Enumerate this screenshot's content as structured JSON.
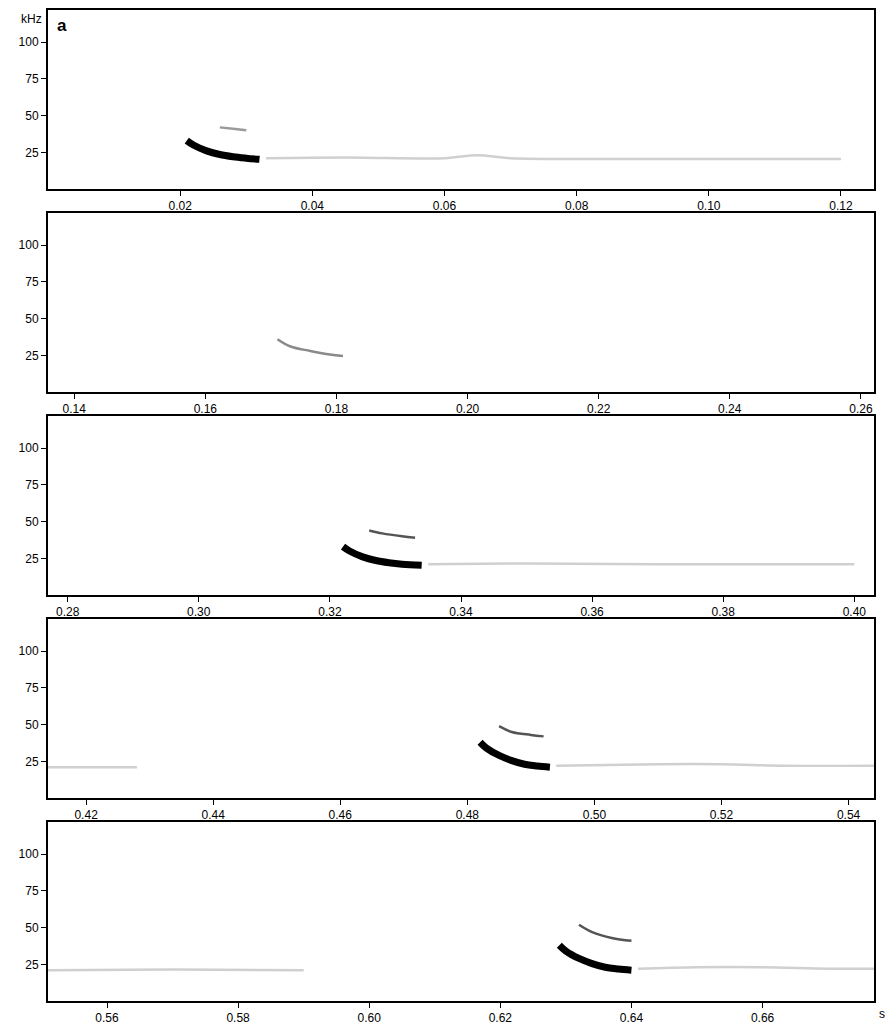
{
  "chart_data": [
    {
      "type": "line",
      "title": "a",
      "ylabel": "kHz",
      "xlim": [
        0.0,
        0.125
      ],
      "xticks": [
        0.02,
        0.04,
        0.06,
        0.08,
        0.1,
        0.12
      ],
      "ylim": [
        0,
        122
      ],
      "yticks": [
        25,
        50,
        75,
        100
      ],
      "grid": false,
      "series": [
        {
          "color": "#d0d0d0",
          "line_style": "solid",
          "x": [
            0.033,
            0.045,
            0.06,
            0.065,
            0.07,
            0.09,
            0.12
          ],
          "values": [
            21,
            21.5,
            21,
            23,
            21,
            20.5,
            20.5
          ]
        },
        {
          "color": "#9a9a9a",
          "line_style": "solid",
          "x": [
            0.026,
            0.028,
            0.03
          ],
          "values": [
            42,
            41,
            40
          ]
        },
        {
          "color": "#000000",
          "line_style": "bold",
          "x": [
            0.021,
            0.022,
            0.024,
            0.026,
            0.028,
            0.03,
            0.032
          ],
          "values": [
            33,
            30,
            26,
            23.5,
            22,
            21,
            20.2
          ]
        }
      ]
    },
    {
      "type": "line",
      "xlim": [
        0.136,
        0.262
      ],
      "xticks": [
        0.14,
        0.16,
        0.18,
        0.2,
        0.22,
        0.24,
        0.26
      ],
      "ylim": [
        0,
        122
      ],
      "yticks": [
        25,
        50,
        75,
        100
      ],
      "grid": false,
      "series": [
        {
          "color": "#8a8a8a",
          "line_style": "solid",
          "x": [
            0.171,
            0.173,
            0.176,
            0.179,
            0.181
          ],
          "values": [
            36,
            31,
            28,
            25.5,
            24.5
          ]
        }
      ]
    },
    {
      "type": "line",
      "xlim": [
        0.277,
        0.403
      ],
      "xticks": [
        0.28,
        0.3,
        0.32,
        0.34,
        0.36,
        0.38,
        0.4
      ],
      "ylim": [
        0,
        122
      ],
      "yticks": [
        25,
        50,
        75,
        100
      ],
      "grid": false,
      "series": [
        {
          "color": "#d0d0d0",
          "line_style": "solid",
          "x": [
            0.335,
            0.35,
            0.37,
            0.39,
            0.4
          ],
          "values": [
            21,
            21.5,
            21,
            21,
            21
          ]
        },
        {
          "color": "#555555",
          "line_style": "solid",
          "x": [
            0.326,
            0.328,
            0.331,
            0.333
          ],
          "values": [
            44,
            42,
            40,
            39
          ]
        },
        {
          "color": "#000000",
          "line_style": "bold",
          "x": [
            0.322,
            0.323,
            0.325,
            0.327,
            0.329,
            0.331,
            0.334
          ],
          "values": [
            33,
            30,
            26,
            23.5,
            22,
            21,
            20.2
          ]
        }
      ]
    },
    {
      "type": "line",
      "xlim": [
        0.414,
        0.544
      ],
      "xticks": [
        0.42,
        0.44,
        0.46,
        0.48,
        0.5,
        0.52,
        0.54
      ],
      "ylim": [
        0,
        122
      ],
      "yticks": [
        25,
        50,
        75,
        100
      ],
      "grid": false,
      "series": [
        {
          "color": "#d0d0d0",
          "line_style": "solid",
          "x": [
            0.414,
            0.42,
            0.428
          ],
          "values": [
            21,
            21,
            21
          ]
        },
        {
          "color": "#d0d0d0",
          "line_style": "solid",
          "x": [
            0.494,
            0.51,
            0.52,
            0.53,
            0.544
          ],
          "values": [
            22,
            23,
            23,
            22,
            22
          ]
        },
        {
          "color": "#555555",
          "line_style": "solid",
          "x": [
            0.485,
            0.487,
            0.49,
            0.492
          ],
          "values": [
            49,
            45,
            43,
            42
          ]
        },
        {
          "color": "#000000",
          "line_style": "bold",
          "x": [
            0.482,
            0.483,
            0.485,
            0.487,
            0.489,
            0.491,
            0.493
          ],
          "values": [
            38,
            34,
            29,
            25.5,
            23,
            21.8,
            21
          ]
        }
      ]
    },
    {
      "type": "line",
      "xlabel": "s",
      "xlim": [
        0.551,
        0.677
      ],
      "xticks": [
        0.56,
        0.58,
        0.6,
        0.62,
        0.64,
        0.66
      ],
      "ylim": [
        0,
        122
      ],
      "yticks": [
        25,
        50,
        75,
        100
      ],
      "grid": false,
      "series": [
        {
          "color": "#d0d0d0",
          "line_style": "solid",
          "x": [
            0.551,
            0.57,
            0.59
          ],
          "values": [
            21,
            21.5,
            21
          ]
        },
        {
          "color": "#d0d0d0",
          "line_style": "solid",
          "x": [
            0.641,
            0.65,
            0.66,
            0.67,
            0.677
          ],
          "values": [
            22,
            23,
            23,
            22,
            22
          ]
        },
        {
          "color": "#555555",
          "line_style": "solid",
          "x": [
            0.632,
            0.634,
            0.637,
            0.64
          ],
          "values": [
            52,
            47,
            43,
            41
          ]
        },
        {
          "color": "#000000",
          "line_style": "bold",
          "x": [
            0.629,
            0.63,
            0.632,
            0.634,
            0.636,
            0.638,
            0.64
          ],
          "values": [
            38,
            34,
            29,
            25.5,
            23,
            21.8,
            21
          ]
        }
      ]
    }
  ]
}
